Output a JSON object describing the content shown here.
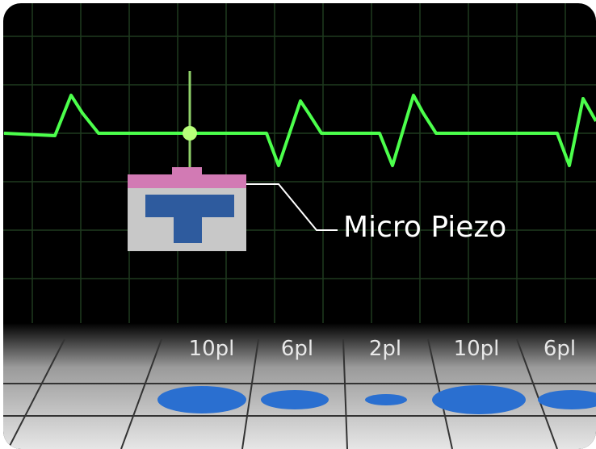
{
  "callout": "Micro Piezo",
  "droplets": [
    "10pl",
    "6pl",
    "2pl",
    "10pl",
    "6pl"
  ]
}
